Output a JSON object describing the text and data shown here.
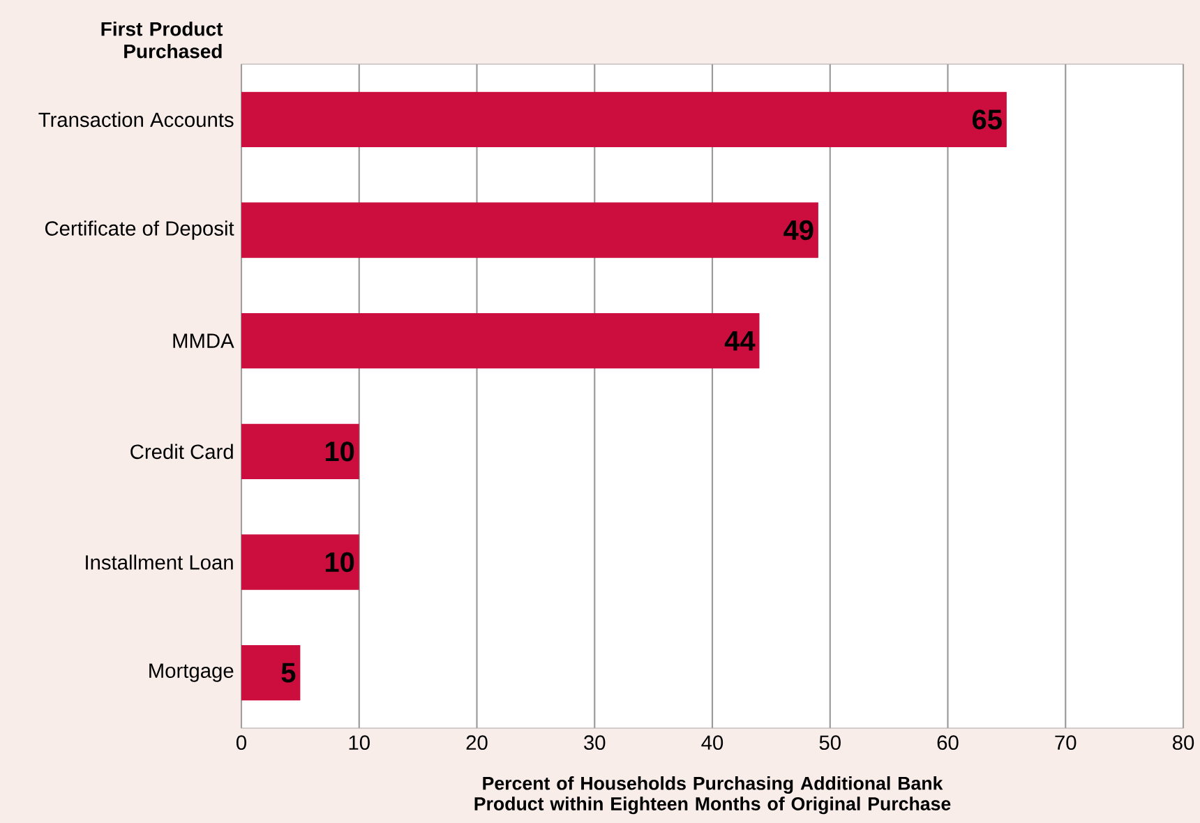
{
  "chart_data": {
    "type": "bar",
    "orientation": "horizontal",
    "ylabel": "First Product Purchased",
    "xlabel": "Percent of Households Purchasing Additional Bank Product within Eighteen Months of Original Purchase",
    "categories": [
      "Transaction Accounts",
      "Certificate of Deposit",
      "MMDA",
      "Credit Card",
      "Installment Loan",
      "Mortgage"
    ],
    "values": [
      65,
      49,
      44,
      10,
      10,
      5
    ],
    "color": "#cc0e3f",
    "data_labels": true,
    "grid": "x",
    "xlim": [
      0,
      80
    ],
    "xticks": [
      0,
      10,
      20,
      30,
      40,
      50,
      60,
      70,
      80
    ]
  }
}
